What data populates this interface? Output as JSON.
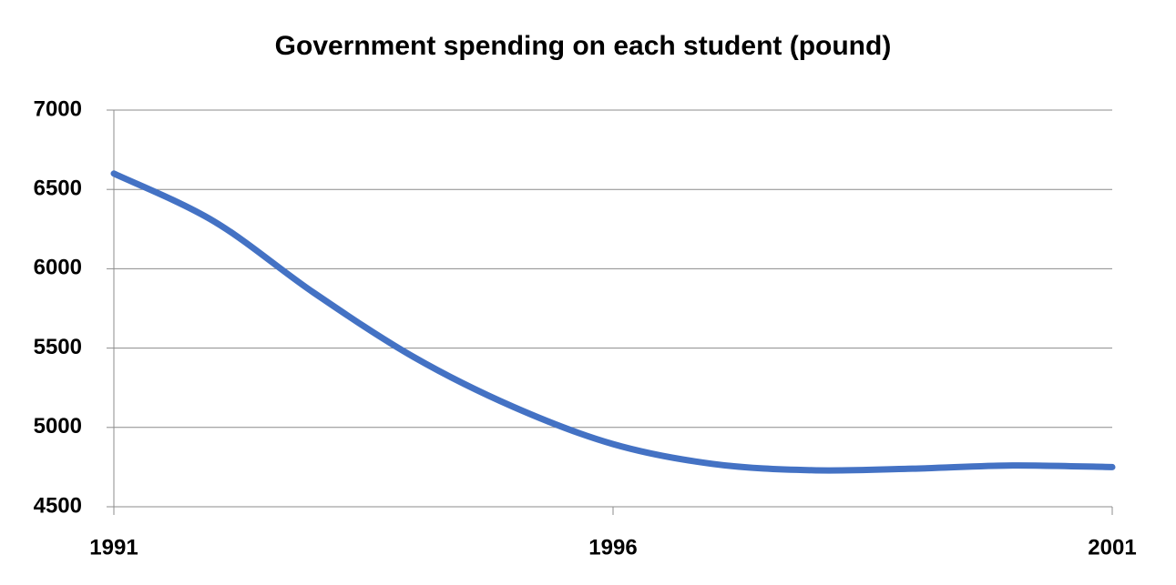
{
  "chart_data": {
    "type": "line",
    "title": "Government spending on each student (pound)",
    "x": [
      1991,
      1992,
      1993,
      1994,
      1995,
      1996,
      1997,
      1998,
      1999,
      2000,
      2001
    ],
    "series": [
      {
        "color": "#4472c4",
        "values": [
          6600,
          6300,
          5850,
          5445,
          5130,
          4895,
          4770,
          4730,
          4740,
          4760,
          4750
        ]
      }
    ],
    "xlim": [
      1991,
      2001
    ],
    "xticks": [
      1991,
      1996,
      2001
    ],
    "ylim": [
      4500,
      7000
    ],
    "yticks": [
      4500,
      5000,
      5500,
      6000,
      6500,
      7000
    ],
    "grid": true,
    "smooth": true
  }
}
